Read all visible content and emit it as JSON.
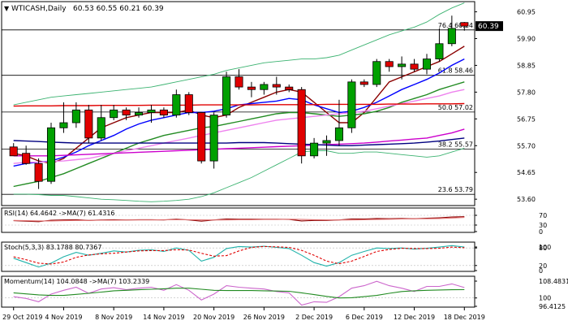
{
  "header": {
    "symbol": "WTICASH,Daily",
    "ohlc": "60.53 60.55 60.21 60.39",
    "current_price": "60.39"
  },
  "colors": {
    "background": "#ffffff",
    "frame": "#000000",
    "bull_candle": "#00a000",
    "bear_candle": "#e00000",
    "bollinger": "#3cb371",
    "sma_fast": "#8b0000",
    "sma_blue": "#0000ff",
    "sma_green": "#228b22",
    "sma_pink": "#ee82ee",
    "sma_magenta": "#cc00cc",
    "sma_navy": "#000080",
    "sma_red_flat": "#e00000",
    "rsi_line": "#8b0000",
    "rsi_ma": "#e07070",
    "stoch_main": "#20b2aa",
    "stoch_signal": "#e00000",
    "momentum_line": "#cc66cc",
    "momentum_ma": "#228b22"
  },
  "fibonacci": [
    {
      "label": "76.4 60.24",
      "price": 60.24
    },
    {
      "label": "61.8 58.46",
      "price": 58.46
    },
    {
      "label": "50.0 57.02",
      "price": 57.02
    },
    {
      "label": "38.2 55.57",
      "price": 55.57
    },
    {
      "label": "23.6 53.79",
      "price": 53.79
    }
  ],
  "x_axis_labels": [
    "29 Oct 2019",
    "4 Nov 2019",
    "8 Nov 2019",
    "14 Nov 2019",
    "20 Nov 2019",
    "26 Nov 2019",
    "2 Dec 2019",
    "6 Dec 2019",
    "12 Dec 2019",
    "18 Dec 2019"
  ],
  "chart_data": [
    {
      "type": "candlestick",
      "title": "WTICASH,Daily",
      "y_ticks": [
        "60.95",
        "59.90",
        "58.85",
        "57.80",
        "56.75",
        "55.70",
        "54.65",
        "53.60"
      ],
      "ylim": [
        53.35,
        61.35
      ],
      "categories": [
        "29 Oct",
        "30 Oct",
        "31 Oct",
        "1 Nov",
        "4 Nov",
        "5 Nov",
        "6 Nov",
        "7 Nov",
        "8 Nov",
        "11 Nov",
        "12 Nov",
        "13 Nov",
        "14 Nov",
        "15 Nov",
        "18 Nov",
        "19 Nov",
        "20 Nov",
        "21 Nov",
        "22 Nov",
        "25 Nov",
        "26 Nov",
        "27 Nov",
        "28 Nov",
        "29 Nov",
        "2 Dec",
        "3 Dec",
        "4 Dec",
        "5 Dec",
        "6 Dec",
        "9 Dec",
        "10 Dec",
        "11 Dec",
        "12 Dec",
        "13 Dec",
        "16 Dec",
        "17 Dec",
        "18 Dec"
      ],
      "candles": [
        [
          55.65,
          55.8,
          55.3,
          55.3
        ],
        [
          55.4,
          55.7,
          54.95,
          55.0
        ],
        [
          55.0,
          55.2,
          54.0,
          54.3
        ],
        [
          54.3,
          56.6,
          54.2,
          56.4
        ],
        [
          56.4,
          57.4,
          56.2,
          56.6
        ],
        [
          56.6,
          57.4,
          56.4,
          57.1
        ],
        [
          57.1,
          57.3,
          55.8,
          56.0
        ],
        [
          56.0,
          57.3,
          55.9,
          56.8
        ],
        [
          56.8,
          57.3,
          56.7,
          57.1
        ],
        [
          57.1,
          57.2,
          56.7,
          56.9
        ],
        [
          56.9,
          57.2,
          56.8,
          57.0
        ],
        [
          57.0,
          57.3,
          56.6,
          57.1
        ],
        [
          57.1,
          57.2,
          56.8,
          56.9
        ],
        [
          56.9,
          57.9,
          56.8,
          57.7
        ],
        [
          57.7,
          57.8,
          56.9,
          57.0
        ],
        [
          57.0,
          57.0,
          55.0,
          55.1
        ],
        [
          55.1,
          57.0,
          54.8,
          56.9
        ],
        [
          56.9,
          58.6,
          56.8,
          58.4
        ],
        [
          58.4,
          58.7,
          57.9,
          58.0
        ],
        [
          58.0,
          58.2,
          57.6,
          57.9
        ],
        [
          57.9,
          58.2,
          57.7,
          58.1
        ],
        [
          58.1,
          58.4,
          57.7,
          58.0
        ],
        [
          58.0,
          58.1,
          57.8,
          57.9
        ],
        [
          57.9,
          58.0,
          55.0,
          55.3
        ],
        [
          55.3,
          56.0,
          55.2,
          55.8
        ],
        [
          55.8,
          56.1,
          55.3,
          55.9
        ],
        [
          55.9,
          57.5,
          55.7,
          56.4
        ],
        [
          56.4,
          58.3,
          56.2,
          58.2
        ],
        [
          58.2,
          58.3,
          58.0,
          58.1
        ],
        [
          58.1,
          59.1,
          58.0,
          59.0
        ],
        [
          59.0,
          59.1,
          58.6,
          58.8
        ],
        [
          58.8,
          59.2,
          58.3,
          58.9
        ],
        [
          58.9,
          59.1,
          58.6,
          58.7
        ],
        [
          58.7,
          59.3,
          58.5,
          59.1
        ],
        [
          59.1,
          60.3,
          59.0,
          59.7
        ],
        [
          59.7,
          60.8,
          59.6,
          60.3
        ],
        [
          60.53,
          60.55,
          60.21,
          60.39
        ]
      ],
      "overlays": [
        {
          "name": "bollinger-upper",
          "color_key": "bollinger",
          "values": [
            57.3,
            57.4,
            57.5,
            57.6,
            57.65,
            57.7,
            57.75,
            57.8,
            57.85,
            57.9,
            57.95,
            58.0,
            58.1,
            58.2,
            58.3,
            58.4,
            58.5,
            58.65,
            58.75,
            58.85,
            58.95,
            59.0,
            59.05,
            59.1,
            59.1,
            59.15,
            59.25,
            59.45,
            59.65,
            59.85,
            60.05,
            60.2,
            60.35,
            60.55,
            60.85,
            61.1,
            61.3
          ]
        },
        {
          "name": "bollinger-lower",
          "color_key": "bollinger",
          "values": [
            53.8,
            53.8,
            53.78,
            53.75,
            53.75,
            53.7,
            53.65,
            53.6,
            53.58,
            53.55,
            53.52,
            53.5,
            53.52,
            53.55,
            53.6,
            53.7,
            53.85,
            54.05,
            54.25,
            54.45,
            54.7,
            54.95,
            55.2,
            55.45,
            55.5,
            55.5,
            55.4,
            55.4,
            55.45,
            55.45,
            55.4,
            55.35,
            55.3,
            55.25,
            55.3,
            55.45,
            55.6
          ]
        },
        {
          "name": "sma-fast",
          "color_key": "sma_fast",
          "values": [
            55.4,
            55.3,
            55.1,
            55.0,
            55.2,
            55.6,
            56.0,
            56.4,
            56.6,
            56.8,
            56.9,
            57.0,
            57.0,
            57.0,
            57.1,
            56.9,
            56.8,
            56.9,
            57.2,
            57.4,
            57.6,
            57.8,
            57.9,
            57.8,
            57.4,
            57.0,
            56.6,
            56.6,
            57.0,
            57.6,
            58.2,
            58.4,
            58.6,
            58.8,
            59.0,
            59.3,
            59.6
          ]
        },
        {
          "name": "sma-blue",
          "color_key": "sma_blue",
          "values": [
            54.9,
            55.0,
            55.05,
            55.1,
            55.25,
            55.45,
            55.7,
            55.9,
            56.1,
            56.35,
            56.55,
            56.7,
            56.8,
            56.9,
            57.0,
            57.0,
            57.05,
            57.15,
            57.3,
            57.35,
            57.4,
            57.45,
            57.55,
            57.5,
            57.3,
            57.15,
            57.0,
            57.05,
            57.2,
            57.4,
            57.65,
            57.9,
            58.1,
            58.3,
            58.55,
            58.85,
            59.1
          ]
        },
        {
          "name": "sma-green",
          "color_key": "sma_green",
          "values": [
            54.1,
            54.2,
            54.3,
            54.45,
            54.6,
            54.8,
            55.0,
            55.2,
            55.4,
            55.6,
            55.8,
            55.95,
            56.1,
            56.2,
            56.3,
            56.4,
            56.45,
            56.55,
            56.65,
            56.75,
            56.85,
            56.95,
            57.0,
            57.0,
            56.95,
            56.9,
            56.85,
            56.9,
            56.95,
            57.05,
            57.2,
            57.4,
            57.55,
            57.7,
            57.9,
            58.05,
            58.2
          ]
        },
        {
          "name": "sma-pink",
          "color_key": "sma_pink",
          "values": [
            55.0,
            55.05,
            55.05,
            55.08,
            55.1,
            55.15,
            55.2,
            55.3,
            55.4,
            55.5,
            55.6,
            55.7,
            55.8,
            55.9,
            56.0,
            56.1,
            56.2,
            56.3,
            56.4,
            56.5,
            56.6,
            56.7,
            56.75,
            56.8,
            56.85,
            56.9,
            56.95,
            57.0,
            57.05,
            57.15,
            57.25,
            57.35,
            57.45,
            57.55,
            57.65,
            57.8,
            57.9
          ]
        },
        {
          "name": "sma-magenta",
          "color_key": "sma_magenta",
          "values": [
            55.3,
            55.3,
            55.3,
            55.3,
            55.32,
            55.34,
            55.36,
            55.38,
            55.4,
            55.42,
            55.44,
            55.46,
            55.48,
            55.5,
            55.52,
            55.54,
            55.56,
            55.58,
            55.6,
            55.62,
            55.64,
            55.66,
            55.68,
            55.7,
            55.72,
            55.74,
            55.76,
            55.78,
            55.8,
            55.84,
            55.88,
            55.92,
            55.96,
            56.0,
            56.1,
            56.2,
            56.35
          ]
        },
        {
          "name": "sma-navy",
          "color_key": "sma_navy",
          "values": [
            55.9,
            55.88,
            55.86,
            55.84,
            55.82,
            55.8,
            55.8,
            55.8,
            55.8,
            55.8,
            55.8,
            55.8,
            55.8,
            55.8,
            55.8,
            55.8,
            55.8,
            55.8,
            55.82,
            55.82,
            55.82,
            55.8,
            55.78,
            55.76,
            55.74,
            55.72,
            55.7,
            55.7,
            55.72,
            55.74,
            55.76,
            55.78,
            55.8,
            55.84,
            55.88,
            55.94,
            56.0
          ]
        },
        {
          "name": "sma-red-flat",
          "color_key": "sma_red_flat",
          "values": [
            57.25,
            57.26,
            57.26,
            57.26,
            57.27,
            57.27,
            57.27,
            57.28,
            57.28,
            57.28,
            57.28,
            57.29,
            57.29,
            57.29,
            57.29,
            57.3,
            57.3,
            57.3,
            57.3,
            57.3,
            57.31,
            57.31,
            57.31,
            57.31,
            57.31,
            57.32,
            57.32,
            57.32,
            57.32,
            57.32,
            57.33,
            57.33,
            57.33,
            57.34,
            57.34,
            57.34,
            57.35
          ]
        }
      ]
    },
    {
      "type": "line",
      "title": "RSI(14) 64.4642 ->MA(7) 61.4316",
      "y_ticks": [
        "70",
        "30",
        "0"
      ],
      "ylim": [
        0,
        100
      ],
      "series": [
        {
          "name": "RSI(14)",
          "color_key": "rsi_line",
          "values": [
            48,
            46,
            44,
            50,
            51,
            52,
            49,
            51,
            52,
            51,
            52,
            52,
            51,
            54,
            51,
            46,
            51,
            55,
            54,
            54,
            54,
            54,
            53,
            47,
            49,
            49,
            51,
            55,
            55,
            57,
            56,
            57,
            56,
            58,
            60,
            63,
            64.46
          ]
        },
        {
          "name": "MA(7)",
          "color_key": "rsi_ma",
          "values": [
            49,
            48,
            47,
            47,
            48,
            49,
            49,
            50,
            50,
            51,
            51,
            51,
            52,
            52,
            52,
            51,
            51,
            51,
            52,
            52,
            53,
            53,
            54,
            53,
            52,
            51,
            51,
            51,
            52,
            53,
            54,
            55,
            56,
            56,
            57,
            59,
            61.43
          ]
        }
      ]
    },
    {
      "type": "line",
      "title": "Stoch(5,3,3) 83.1788 80.7367",
      "y_ticks": [
        "100",
        "80",
        "20",
        "0"
      ],
      "ylim": [
        0,
        100
      ],
      "series": [
        {
          "name": "Stoch(5,3,3) %K",
          "color_key": "stoch_main",
          "values": [
            45,
            30,
            15,
            28,
            50,
            65,
            55,
            62,
            70,
            66,
            72,
            74,
            68,
            80,
            72,
            35,
            48,
            78,
            85,
            83,
            86,
            82,
            78,
            55,
            30,
            18,
            30,
            55,
            68,
            80,
            78,
            80,
            76,
            79,
            83,
            88,
            83.18
          ]
        },
        {
          "name": "Stoch(5,3,3) %D",
          "color_key": "stoch_signal",
          "values": [
            50,
            40,
            28,
            25,
            32,
            48,
            56,
            60,
            62,
            66,
            70,
            71,
            71,
            74,
            73,
            62,
            52,
            54,
            70,
            82,
            85,
            84,
            82,
            72,
            55,
            35,
            26,
            35,
            51,
            68,
            75,
            79,
            78,
            78,
            79,
            83,
            80.74
          ]
        }
      ]
    },
    {
      "type": "line",
      "title": "Momentum(14) 104.0848 ->MA(7) 103.2339",
      "y_ticks": [
        "108.4831",
        "100",
        "96.4125"
      ],
      "ylim": [
        96.4125,
        108.4831
      ],
      "series": [
        {
          "name": "Momentum(14)",
          "color_key": "momentum_line",
          "values": [
            100.5,
            99.8,
            98.5,
            101.5,
            103.0,
            104.2,
            101.8,
            103.5,
            104.0,
            103.2,
            103.8,
            104.2,
            103.0,
            105.2,
            103.0,
            99.2,
            101.5,
            104.8,
            104.2,
            103.8,
            103.5,
            102.5,
            102.0,
            97.2,
            98.5,
            98.3,
            100.5,
            103.8,
            104.8,
            106.5,
            104.8,
            103.8,
            102.5,
            104.5,
            104.5,
            105.5,
            104.08
          ]
        },
        {
          "name": "MA(7)",
          "color_key": "momentum_ma",
          "values": [
            102.0,
            101.6,
            101.2,
            101.0,
            101.0,
            101.4,
            101.8,
            102.3,
            102.8,
            103.0,
            103.2,
            103.4,
            103.6,
            103.8,
            103.8,
            103.4,
            103.0,
            102.9,
            102.9,
            102.9,
            102.8,
            102.7,
            102.6,
            102.0,
            101.3,
            100.6,
            100.0,
            100.1,
            100.5,
            101.0,
            101.8,
            102.5,
            102.8,
            103.0,
            103.1,
            103.2,
            103.23
          ]
        }
      ]
    }
  ]
}
